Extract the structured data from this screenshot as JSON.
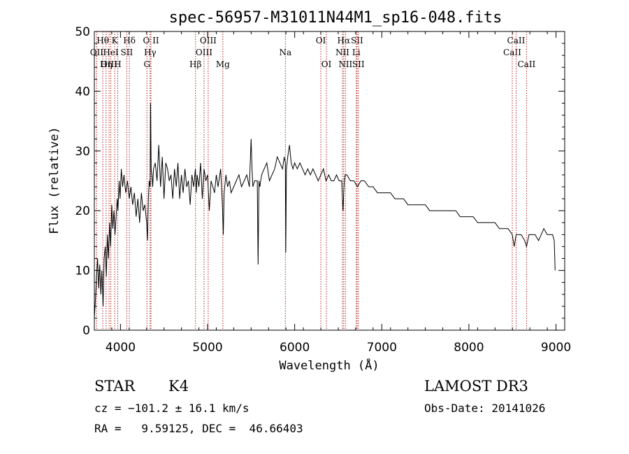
{
  "chart_data": {
    "type": "line",
    "title": "spec-56957-M31011N44M1_sp16-048.fits",
    "xlabel": "Wavelength (Å)",
    "ylabel": "Flux (relative)",
    "xlim": [
      3700,
      9100
    ],
    "ylim": [
      0,
      50
    ],
    "xticks": [
      4000,
      5000,
      6000,
      7000,
      8000,
      9000
    ],
    "yticks": [
      0,
      10,
      20,
      30,
      40,
      50
    ],
    "series": [
      {
        "name": "spectrum",
        "x": [
          3700,
          3712,
          3725,
          3737,
          3750,
          3762,
          3775,
          3787,
          3800,
          3812,
          3825,
          3837,
          3850,
          3862,
          3875,
          3887,
          3900,
          3912,
          3925,
          3937,
          3950,
          3962,
          3970,
          3985,
          3995,
          4010,
          4025,
          4040,
          4060,
          4080,
          4100,
          4120,
          4140,
          4160,
          4180,
          4200,
          4220,
          4240,
          4260,
          4280,
          4300,
          4310,
          4320,
          4330,
          4340,
          4345,
          4352,
          4360,
          4370,
          4380,
          4400,
          4420,
          4440,
          4460,
          4480,
          4500,
          4520,
          4540,
          4560,
          4580,
          4600,
          4620,
          4640,
          4660,
          4680,
          4700,
          4720,
          4740,
          4760,
          4780,
          4800,
          4820,
          4840,
          4860,
          4870,
          4880,
          4900,
          4920,
          4940,
          4960,
          4980,
          5000,
          5020,
          5040,
          5060,
          5080,
          5100,
          5120,
          5150,
          5170,
          5180,
          5190,
          5210,
          5230,
          5250,
          5270,
          5300,
          5330,
          5360,
          5390,
          5420,
          5450,
          5480,
          5500,
          5510,
          5520,
          5540,
          5570,
          5580,
          5590,
          5600,
          5620,
          5650,
          5680,
          5710,
          5740,
          5770,
          5800,
          5830,
          5860,
          5880,
          5893,
          5898,
          5905,
          5920,
          5940,
          5960,
          5980,
          6000,
          6030,
          6060,
          6090,
          6120,
          6150,
          6180,
          6210,
          6240,
          6270,
          6300,
          6330,
          6360,
          6390,
          6420,
          6450,
          6480,
          6510,
          6540,
          6555,
          6563,
          6570,
          6580,
          6600,
          6640,
          6680,
          6720,
          6760,
          6800,
          6850,
          6900,
          6950,
          7000,
          7050,
          7100,
          7150,
          7200,
          7250,
          7300,
          7350,
          7400,
          7450,
          7500,
          7550,
          7600,
          7650,
          7700,
          7750,
          7800,
          7850,
          7900,
          7950,
          8000,
          8050,
          8100,
          8150,
          8200,
          8250,
          8300,
          8350,
          8400,
          8450,
          8498,
          8520,
          8542,
          8570,
          8600,
          8640,
          8662,
          8690,
          8720,
          8760,
          8800,
          8830,
          8860,
          8900,
          8930,
          8960,
          8980,
          8990
        ],
        "y": [
          2,
          5,
          9,
          12,
          7,
          11,
          6,
          10,
          4,
          12,
          14,
          9,
          16,
          12,
          18,
          14,
          21,
          17,
          20,
          16,
          19,
          22,
          20,
          25,
          22,
          27,
          24,
          26,
          23,
          25,
          22,
          24,
          21,
          23,
          19,
          22,
          18,
          23,
          20,
          21,
          18,
          15,
          22,
          25,
          24,
          38,
          27,
          26,
          24,
          27,
          28,
          25,
          31,
          24,
          29,
          22,
          28,
          27,
          25,
          26,
          22,
          27,
          24,
          28,
          22,
          26,
          23,
          27,
          24,
          25,
          21,
          26,
          24,
          27,
          23,
          26,
          24,
          28,
          22,
          27,
          25,
          26,
          20,
          25,
          24,
          23,
          26,
          24,
          27,
          21,
          16,
          23,
          26,
          24,
          25,
          23,
          24,
          25,
          26,
          24,
          25,
          26,
          24,
          32,
          27,
          24,
          25,
          25,
          11,
          25,
          24,
          26,
          27,
          28,
          25,
          26,
          27,
          29,
          28,
          27,
          29,
          28,
          13,
          27,
          29,
          31,
          28,
          27,
          28,
          27,
          28,
          27,
          26,
          27,
          26,
          27,
          26,
          25,
          26,
          27,
          25,
          26,
          25,
          25,
          26,
          25,
          25,
          20,
          23,
          25,
          26,
          26,
          25,
          25,
          24,
          25,
          25,
          24,
          24,
          23,
          23,
          23,
          23,
          22,
          22,
          22,
          21,
          21,
          21,
          21,
          21,
          20,
          20,
          20,
          20,
          20,
          20,
          20,
          19,
          19,
          19,
          19,
          18,
          18,
          18,
          18,
          18,
          17,
          17,
          17,
          16,
          14,
          16,
          16,
          16,
          15,
          14,
          16,
          16,
          16,
          15,
          16,
          17,
          16,
          16,
          16,
          15,
          10
        ]
      }
    ],
    "lines": [
      {
        "name": "Hθ",
        "x": 3797,
        "row": 1
      },
      {
        "name": "OII",
        "x": 3727,
        "row": 2
      },
      {
        "name": "OIII",
        "x": 3869,
        "row": 3
      },
      {
        "name": "HeI",
        "x": 3889,
        "row": 2
      },
      {
        "name": "Hη",
        "x": 3835,
        "row": 3
      },
      {
        "name": "K",
        "x": 3934,
        "row": 1
      },
      {
        "name": "H",
        "x": 3969,
        "row": 3
      },
      {
        "name": "SII",
        "x": 4072,
        "row": 2
      },
      {
        "name": "Hδ",
        "x": 4102,
        "row": 1
      },
      {
        "name": "G",
        "x": 4304,
        "row": 3
      },
      {
        "name": "O II",
        "x": 4350,
        "row": 1
      },
      {
        "name": "Hγ",
        "x": 4340,
        "row": 2
      },
      {
        "name": "Hβ",
        "x": 4861,
        "row": 3
      },
      {
        "name": "OIII",
        "x": 4959,
        "row": 2
      },
      {
        "name": "OIII",
        "x": 5007,
        "row": 1
      },
      {
        "name": "Mg",
        "x": 5175,
        "row": 3
      },
      {
        "name": "Na",
        "x": 5893,
        "row": 2
      },
      {
        "name": "OI",
        "x": 6300,
        "row": 1
      },
      {
        "name": "OI",
        "x": 6364,
        "row": 3
      },
      {
        "name": "NII",
        "x": 6548,
        "row": 2
      },
      {
        "name": "NII",
        "x": 6583,
        "row": 3
      },
      {
        "name": "Hα",
        "x": 6563,
        "row": 1
      },
      {
        "name": "SII",
        "x": 6716,
        "row": 1
      },
      {
        "name": "Li",
        "x": 6707,
        "row": 2
      },
      {
        "name": "SII",
        "x": 6731,
        "row": 3
      },
      {
        "name": "CaII",
        "x": 8498,
        "row": 2
      },
      {
        "name": "CaII",
        "x": 8542,
        "row": 1
      },
      {
        "name": "CaII",
        "x": 8662,
        "row": 3
      }
    ]
  },
  "info": {
    "class": "STAR",
    "subclass": "K4",
    "survey": "LAMOST DR3",
    "cz": "cz = −101.2 ± 16.1 km/s",
    "obsdate": "Obs-Date: 20141026",
    "radec": "RA =   9.59125, DEC =  46.66403"
  }
}
